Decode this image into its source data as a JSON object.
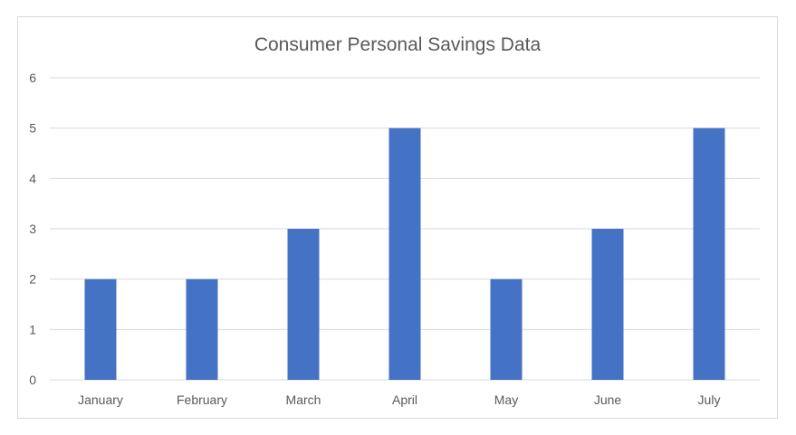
{
  "chart_data": {
    "type": "bar",
    "title": "Consumer Personal Savings Data",
    "xlabel": "",
    "ylabel": "",
    "categories": [
      "January",
      "February",
      "March",
      "April",
      "May",
      "June",
      "July"
    ],
    "values": [
      2,
      2,
      3,
      5,
      2,
      3,
      5
    ],
    "ylim": [
      0,
      6
    ],
    "yticks": [
      "0",
      "1",
      "2",
      "3",
      "4",
      "5",
      "6"
    ],
    "grid": true,
    "legend": "none",
    "bar_color": "#4472c4"
  }
}
